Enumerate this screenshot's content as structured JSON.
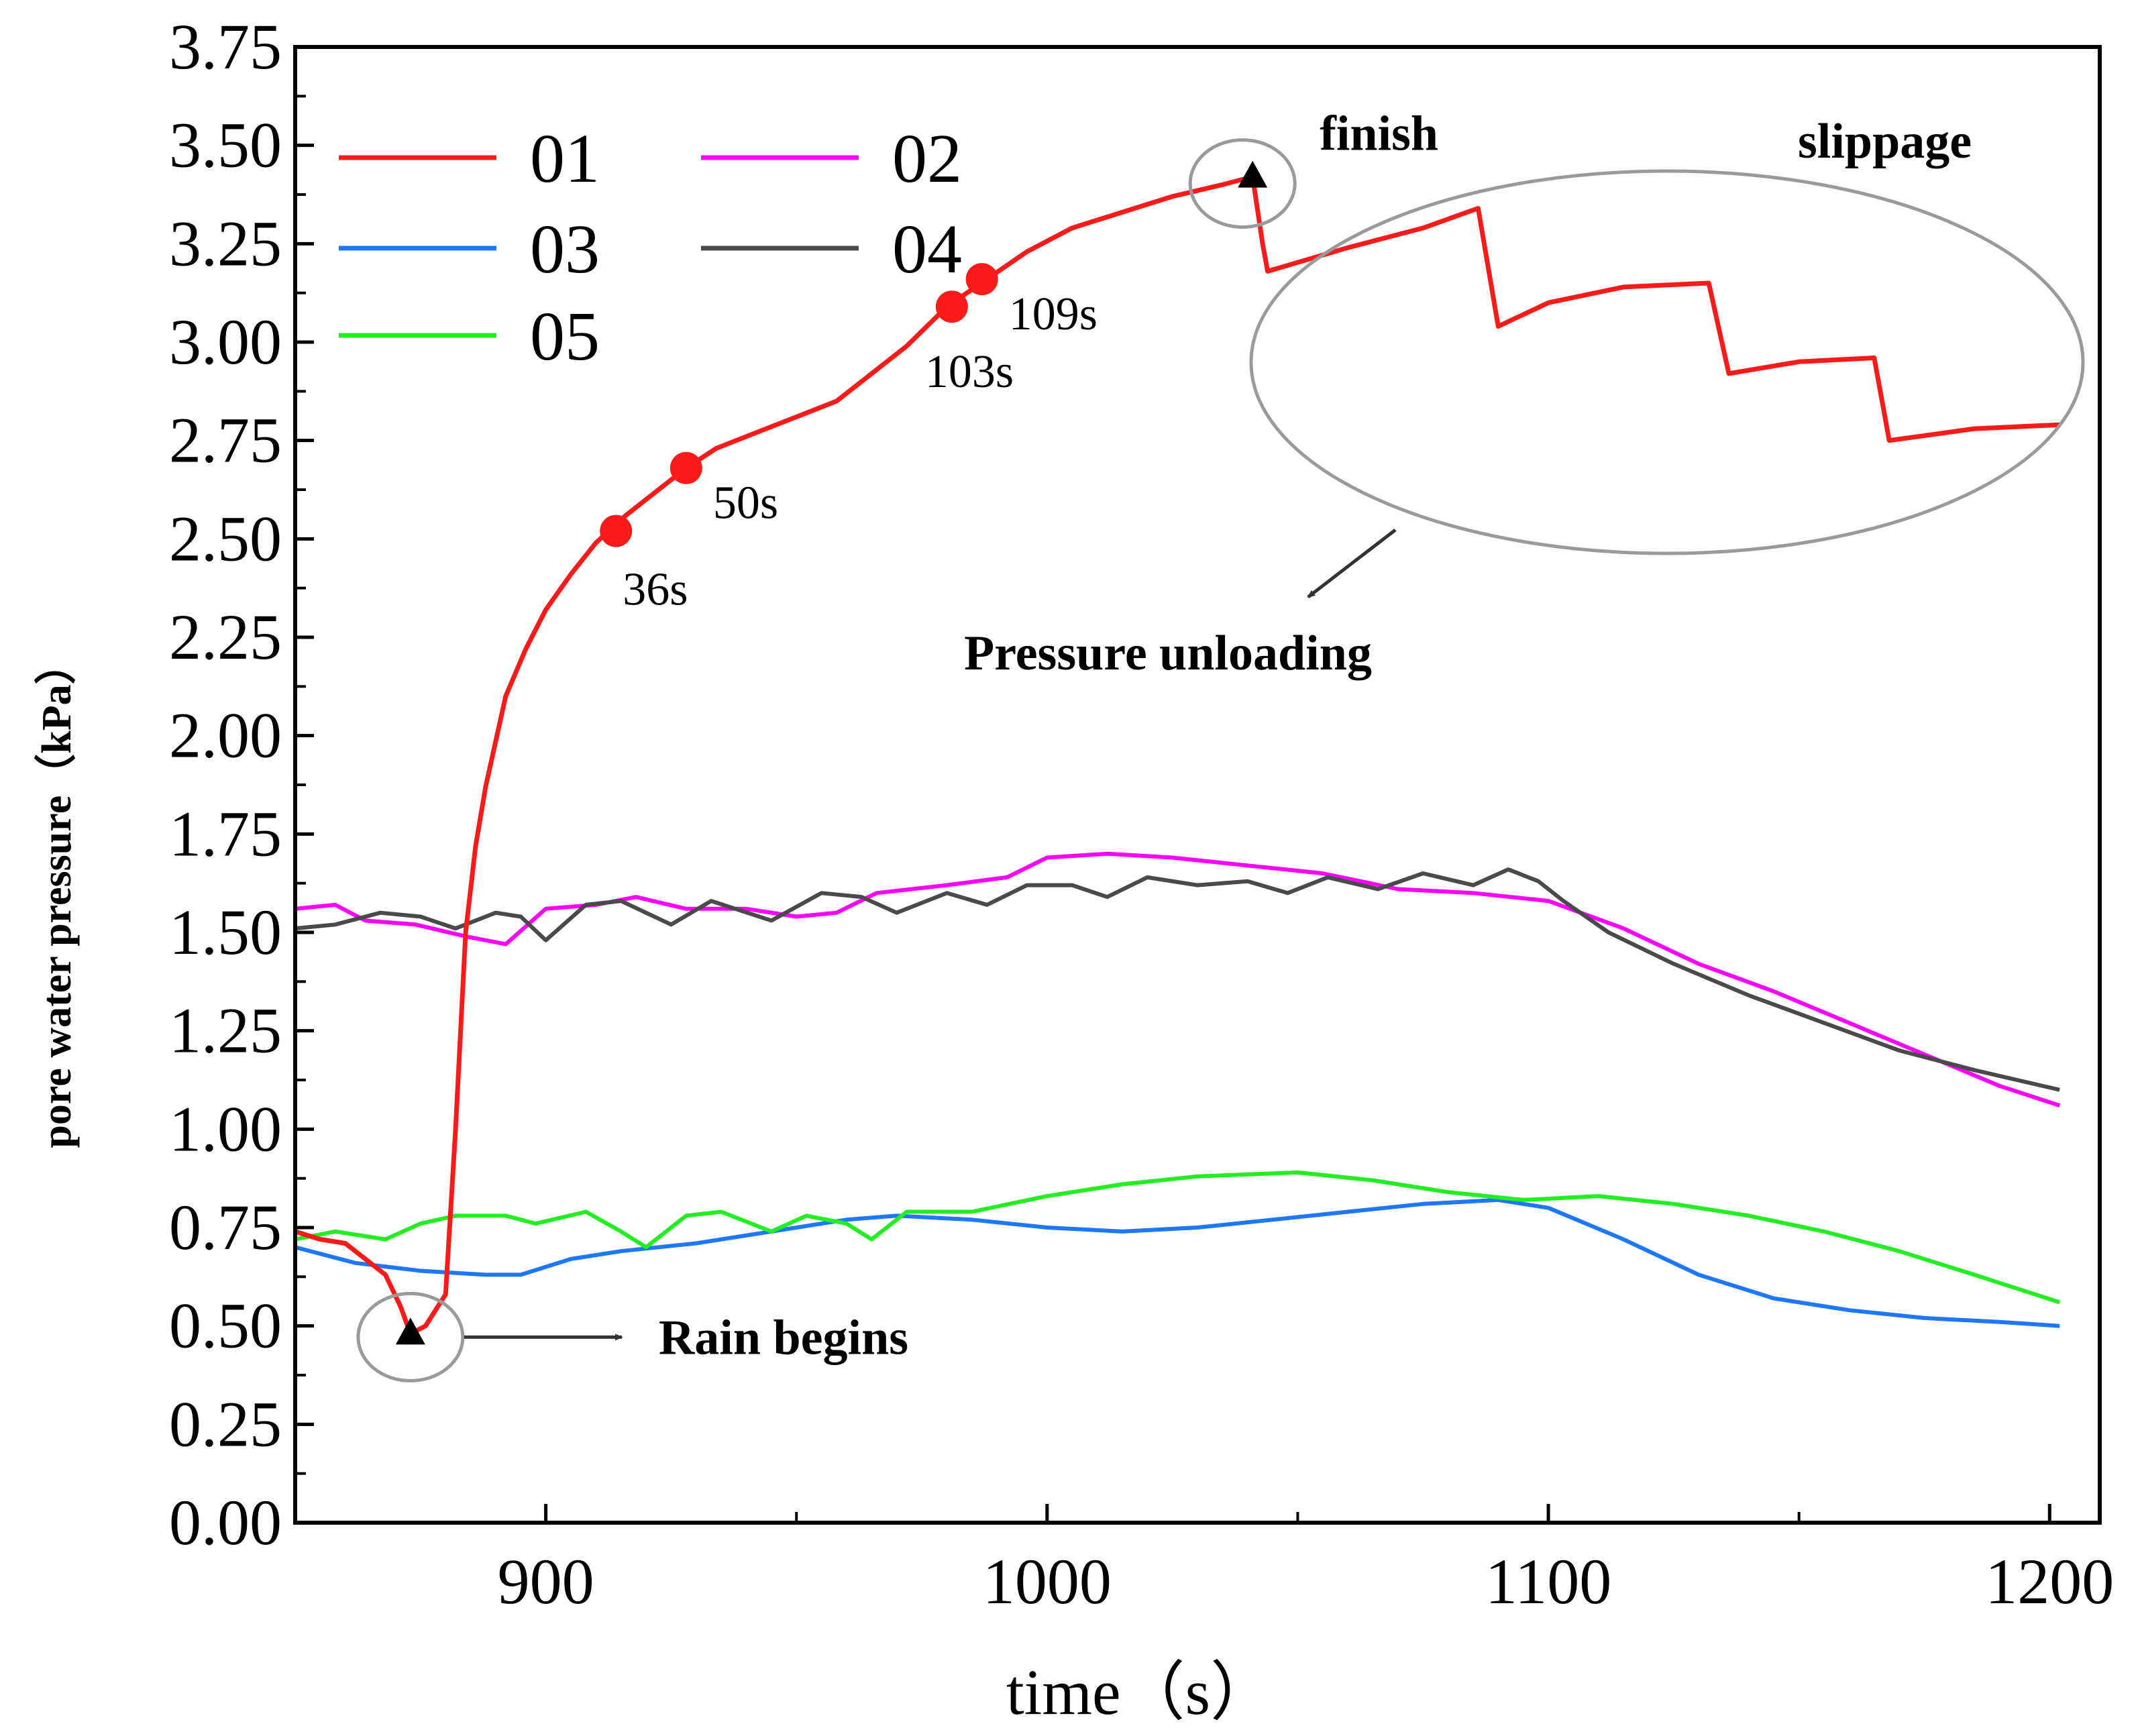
{
  "chart_data": {
    "type": "line",
    "title": "",
    "xlabel": "time（s）",
    "ylabel": "pore water pressure（kPa）",
    "xlim": [
      850,
      1210
    ],
    "ylim": [
      0,
      3.75
    ],
    "xticks": [
      900,
      1000,
      1100,
      1200
    ],
    "yticks": [
      "0.00",
      "0.25",
      "0.50",
      "0.75",
      "1.00",
      "1.25",
      "1.50",
      "1.75",
      "2.00",
      "2.25",
      "2.50",
      "2.75",
      "3.00",
      "3.25",
      "3.50",
      "3.75"
    ],
    "legend_position": "top-left",
    "series": [
      {
        "name": "01",
        "color": "#ff1a1a",
        "points": [
          [
            850,
            0.74
          ],
          [
            855,
            0.72
          ],
          [
            860,
            0.71
          ],
          [
            864,
            0.67
          ],
          [
            868,
            0.63
          ],
          [
            871,
            0.55
          ],
          [
            873,
            0.48
          ],
          [
            876,
            0.5
          ],
          [
            878,
            0.54
          ],
          [
            880,
            0.58
          ],
          [
            882,
            1.0
          ],
          [
            884,
            1.5
          ],
          [
            886,
            1.72
          ],
          [
            888,
            1.87
          ],
          [
            892,
            2.1
          ],
          [
            896,
            2.22
          ],
          [
            900,
            2.32
          ],
          [
            905,
            2.41
          ],
          [
            910,
            2.49
          ],
          [
            916,
            2.56
          ],
          [
            922,
            2.62
          ],
          [
            928,
            2.68
          ],
          [
            934,
            2.73
          ],
          [
            942,
            2.77
          ],
          [
            950,
            2.81
          ],
          [
            958,
            2.85
          ],
          [
            966,
            2.93
          ],
          [
            972,
            2.99
          ],
          [
            980,
            3.09
          ],
          [
            988,
            3.16
          ],
          [
            996,
            3.23
          ],
          [
            1005,
            3.29
          ],
          [
            1015,
            3.33
          ],
          [
            1025,
            3.37
          ],
          [
            1035,
            3.4
          ],
          [
            1041,
            3.42
          ],
          [
            1043,
            3.25
          ],
          [
            1044,
            3.18
          ],
          [
            1060,
            3.24
          ],
          [
            1075,
            3.29
          ],
          [
            1086,
            3.34
          ],
          [
            1090,
            3.04
          ],
          [
            1100,
            3.1
          ],
          [
            1115,
            3.14
          ],
          [
            1132,
            3.15
          ],
          [
            1136,
            2.92
          ],
          [
            1150,
            2.95
          ],
          [
            1165,
            2.96
          ],
          [
            1168,
            2.75
          ],
          [
            1185,
            2.78
          ],
          [
            1202,
            2.79
          ]
        ]
      },
      {
        "name": "02",
        "color": "#ff00ff",
        "points": [
          [
            850,
            1.56
          ],
          [
            858,
            1.57
          ],
          [
            864,
            1.53
          ],
          [
            874,
            1.52
          ],
          [
            884,
            1.49
          ],
          [
            892,
            1.47
          ],
          [
            900,
            1.56
          ],
          [
            910,
            1.57
          ],
          [
            918,
            1.59
          ],
          [
            928,
            1.56
          ],
          [
            940,
            1.56
          ],
          [
            950,
            1.54
          ],
          [
            958,
            1.55
          ],
          [
            966,
            1.6
          ],
          [
            980,
            1.62
          ],
          [
            992,
            1.64
          ],
          [
            1000,
            1.69
          ],
          [
            1012,
            1.7
          ],
          [
            1025,
            1.69
          ],
          [
            1040,
            1.67
          ],
          [
            1055,
            1.65
          ],
          [
            1070,
            1.61
          ],
          [
            1085,
            1.6
          ],
          [
            1100,
            1.58
          ],
          [
            1115,
            1.51
          ],
          [
            1130,
            1.42
          ],
          [
            1145,
            1.35
          ],
          [
            1160,
            1.27
          ],
          [
            1175,
            1.19
          ],
          [
            1190,
            1.11
          ],
          [
            1202,
            1.06
          ]
        ]
      },
      {
        "name": "03",
        "color": "#1e78ff",
        "points": [
          [
            850,
            0.7
          ],
          [
            862,
            0.66
          ],
          [
            875,
            0.64
          ],
          [
            888,
            0.63
          ],
          [
            895,
            0.63
          ],
          [
            905,
            0.67
          ],
          [
            915,
            0.69
          ],
          [
            930,
            0.71
          ],
          [
            945,
            0.74
          ],
          [
            960,
            0.77
          ],
          [
            970,
            0.78
          ],
          [
            985,
            0.77
          ],
          [
            1000,
            0.75
          ],
          [
            1015,
            0.74
          ],
          [
            1030,
            0.75
          ],
          [
            1045,
            0.77
          ],
          [
            1060,
            0.79
          ],
          [
            1075,
            0.81
          ],
          [
            1090,
            0.82
          ],
          [
            1100,
            0.8
          ],
          [
            1115,
            0.72
          ],
          [
            1130,
            0.63
          ],
          [
            1145,
            0.57
          ],
          [
            1160,
            0.54
          ],
          [
            1175,
            0.52
          ],
          [
            1190,
            0.51
          ],
          [
            1202,
            0.5
          ]
        ]
      },
      {
        "name": "04",
        "color": "#4a4a4a",
        "points": [
          [
            850,
            1.51
          ],
          [
            858,
            1.52
          ],
          [
            867,
            1.55
          ],
          [
            875,
            1.54
          ],
          [
            882,
            1.51
          ],
          [
            890,
            1.55
          ],
          [
            895,
            1.54
          ],
          [
            900,
            1.48
          ],
          [
            908,
            1.57
          ],
          [
            915,
            1.58
          ],
          [
            925,
            1.52
          ],
          [
            933,
            1.58
          ],
          [
            945,
            1.53
          ],
          [
            955,
            1.6
          ],
          [
            963,
            1.59
          ],
          [
            970,
            1.55
          ],
          [
            980,
            1.6
          ],
          [
            988,
            1.57
          ],
          [
            996,
            1.62
          ],
          [
            1005,
            1.62
          ],
          [
            1012,
            1.59
          ],
          [
            1020,
            1.64
          ],
          [
            1030,
            1.62
          ],
          [
            1040,
            1.63
          ],
          [
            1048,
            1.6
          ],
          [
            1056,
            1.64
          ],
          [
            1066,
            1.61
          ],
          [
            1075,
            1.65
          ],
          [
            1085,
            1.62
          ],
          [
            1092,
            1.66
          ],
          [
            1098,
            1.63
          ],
          [
            1103,
            1.58
          ],
          [
            1112,
            1.5
          ],
          [
            1125,
            1.42
          ],
          [
            1140,
            1.34
          ],
          [
            1155,
            1.27
          ],
          [
            1170,
            1.2
          ],
          [
            1185,
            1.15
          ],
          [
            1202,
            1.1
          ]
        ]
      },
      {
        "name": "05",
        "color": "#22ee22",
        "points": [
          [
            850,
            0.72
          ],
          [
            858,
            0.74
          ],
          [
            868,
            0.72
          ],
          [
            875,
            0.76
          ],
          [
            882,
            0.78
          ],
          [
            892,
            0.78
          ],
          [
            898,
            0.76
          ],
          [
            908,
            0.79
          ],
          [
            915,
            0.74
          ],
          [
            920,
            0.7
          ],
          [
            928,
            0.78
          ],
          [
            935,
            0.79
          ],
          [
            945,
            0.74
          ],
          [
            952,
            0.78
          ],
          [
            960,
            0.76
          ],
          [
            965,
            0.72
          ],
          [
            972,
            0.79
          ],
          [
            985,
            0.79
          ],
          [
            1000,
            0.83
          ],
          [
            1015,
            0.86
          ],
          [
            1030,
            0.88
          ],
          [
            1050,
            0.89
          ],
          [
            1065,
            0.87
          ],
          [
            1080,
            0.84
          ],
          [
            1095,
            0.82
          ],
          [
            1110,
            0.83
          ],
          [
            1125,
            0.81
          ],
          [
            1140,
            0.78
          ],
          [
            1155,
            0.74
          ],
          [
            1170,
            0.69
          ],
          [
            1185,
            0.63
          ],
          [
            1202,
            0.56
          ]
        ]
      }
    ],
    "marked_points": [
      {
        "series": "01",
        "x": 914,
        "y": 2.52,
        "label": "36s"
      },
      {
        "series": "01",
        "x": 928,
        "y": 2.68,
        "label": "50s"
      },
      {
        "series": "01",
        "x": 981,
        "y": 3.09,
        "label": "103s"
      },
      {
        "series": "01",
        "x": 987,
        "y": 3.16,
        "label": "109s"
      }
    ],
    "annotations": {
      "finish": {
        "label": "finish",
        "x": 1041,
        "y": 3.42
      },
      "rain": {
        "label": "Rain begins",
        "x": 873,
        "y": 0.48
      },
      "slippage": {
        "label": "slippage"
      },
      "unloading": {
        "label": "Pressure unloading"
      }
    }
  }
}
